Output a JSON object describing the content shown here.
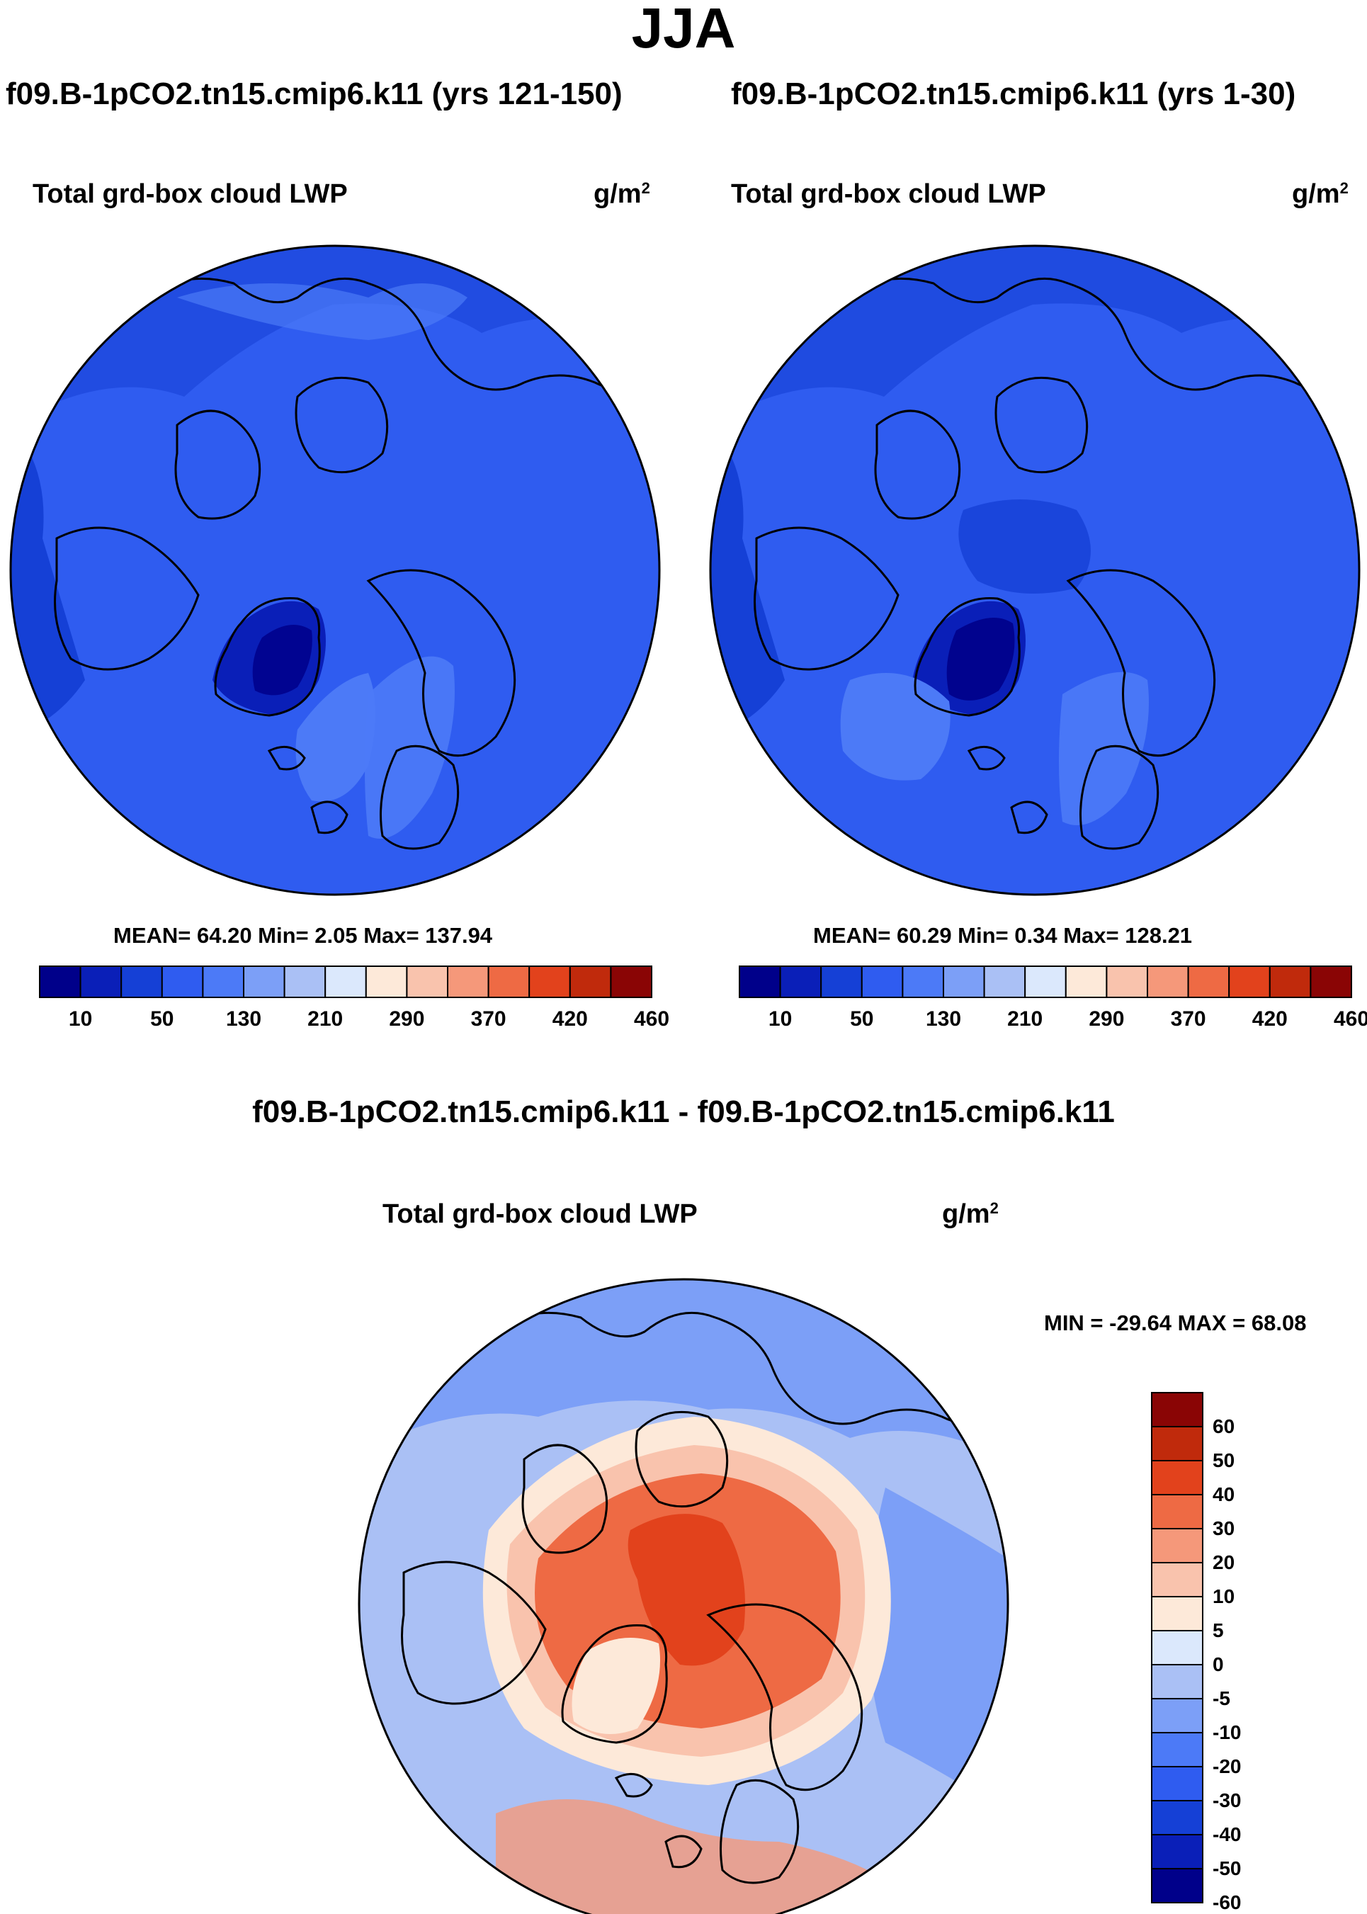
{
  "title": "JJA",
  "colors": {
    "seq_palette": [
      "#00008a",
      "#0a1fb8",
      "#1540d6",
      "#2f5cf0",
      "#4c7af7",
      "#7c9ff7",
      "#aac0f5",
      "#dbe8fc",
      "#fde9d9",
      "#f9c3ad",
      "#f5987a",
      "#ee6a44",
      "#e2421c",
      "#c02a0c",
      "#8a0505"
    ],
    "div_palette_top_to_bottom": [
      "#8a0505",
      "#c02a0c",
      "#e2421c",
      "#ee6a44",
      "#f5987a",
      "#f9c3ad",
      "#fde9d9",
      "#dbe8fc",
      "#aac0f5",
      "#7c9ff7",
      "#4c7af7",
      "#2f5cf0",
      "#1540d6",
      "#0a1fb8",
      "#00008a"
    ],
    "map_background": "#2f5cf0"
  },
  "panels": {
    "left": {
      "run_title": "f09.B-1pCO2.tn15.cmip6.k11 (yrs 121-150)",
      "var_title": "Total grd-box cloud LWP",
      "unit": "g/m",
      "unit_sup": "2",
      "stats": "MEAN=  64.20  Min=   2.05  Max= 137.94"
    },
    "right": {
      "run_title": "f09.B-1pCO2.tn15.cmip6.k11 (yrs 1-30)",
      "var_title": "Total grd-box cloud LWP",
      "unit": "g/m",
      "unit_sup": "2",
      "stats": "MEAN=  60.29  Min=   0.34  Max= 128.21"
    },
    "diff": {
      "run_title": "f09.B-1pCO2.tn15.cmip6.k11 - f09.B-1pCO2.tn15.cmip6.k11",
      "var_title": "Total grd-box cloud LWP",
      "unit": "g/m",
      "unit_sup": "2",
      "stats": "MIN = -29.64 MAX =  68.08"
    }
  },
  "chart_data": [
    {
      "type": "heatmap",
      "title": "f09.B-1pCO2.tn15.cmip6.k11 (yrs 121-150)",
      "variable": "Total grd-box cloud LWP",
      "units": "g/m2",
      "projection": "north polar stereographic",
      "mean": 64.2,
      "min": 2.05,
      "max": 137.94,
      "colorbar_tick_labels": [
        "10",
        "50",
        "130",
        "210",
        "290",
        "370",
        "420",
        "460"
      ],
      "colorbar_levels": [
        10,
        30,
        50,
        90,
        130,
        170,
        210,
        250,
        290,
        330,
        370,
        400,
        420,
        440,
        460
      ]
    },
    {
      "type": "heatmap",
      "title": "f09.B-1pCO2.tn15.cmip6.k11 (yrs 1-30)",
      "variable": "Total grd-box cloud LWP",
      "units": "g/m2",
      "projection": "north polar stereographic",
      "mean": 60.29,
      "min": 0.34,
      "max": 128.21,
      "colorbar_tick_labels": [
        "10",
        "50",
        "130",
        "210",
        "290",
        "370",
        "420",
        "460"
      ],
      "colorbar_levels": [
        10,
        30,
        50,
        90,
        130,
        170,
        210,
        250,
        290,
        330,
        370,
        400,
        420,
        440,
        460
      ]
    },
    {
      "type": "heatmap",
      "title": "f09.B-1pCO2.tn15.cmip6.k11 - f09.B-1pCO2.tn15.cmip6.k11",
      "variable": "Total grd-box cloud LWP",
      "units": "g/m2",
      "projection": "north polar stereographic",
      "min": -29.64,
      "max": 68.08,
      "colorbar_tick_labels": [
        "60",
        "50",
        "40",
        "30",
        "20",
        "10",
        "5",
        "0",
        "-5",
        "-10",
        "-20",
        "-30",
        "-40",
        "-50",
        "-60"
      ]
    }
  ]
}
